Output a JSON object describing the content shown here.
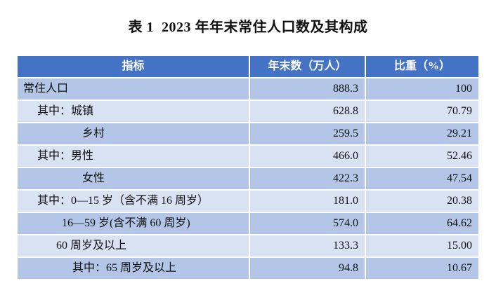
{
  "title": "表 1  2023 年年末常住人口数及其构成",
  "table": {
    "columns": [
      "指标",
      "年末数（万人）",
      "比重（%）"
    ],
    "rows": [
      {
        "indicator": "常住人口",
        "value": "888.3",
        "share": "100",
        "indent": 8
      },
      {
        "indicator": "其中：城镇",
        "value": "628.8",
        "share": "70.79",
        "indent": 28
      },
      {
        "indicator": "乡村",
        "value": "259.5",
        "share": "29.21",
        "indent": 92
      },
      {
        "indicator": "其中：男性",
        "value": "466.0",
        "share": "52.46",
        "indent": 28
      },
      {
        "indicator": "女性",
        "value": "422.3",
        "share": "47.54",
        "indent": 92
      },
      {
        "indicator": "其中：0—15 岁（含不满 16 周岁）",
        "value": "181.0",
        "share": "20.38",
        "indent": 28
      },
      {
        "indicator": "16—59 岁(含不满 60 周岁)",
        "value": "574.0",
        "share": "64.62",
        "indent": 63
      },
      {
        "indicator": "60 周岁及以上",
        "value": "133.3",
        "share": "15.00",
        "indent": 55
      },
      {
        "indicator": "其中：65 周岁及以上",
        "value": "94.8",
        "share": "10.67",
        "indent": 78
      }
    ],
    "colors": {
      "header_bg": "#4472C4",
      "header_text": "#ffffff",
      "row_dark_bg": "#B4C6E7",
      "row_light_bg": "#D9E2F3",
      "grid_line": "#ffffff",
      "text": "#111111"
    }
  }
}
